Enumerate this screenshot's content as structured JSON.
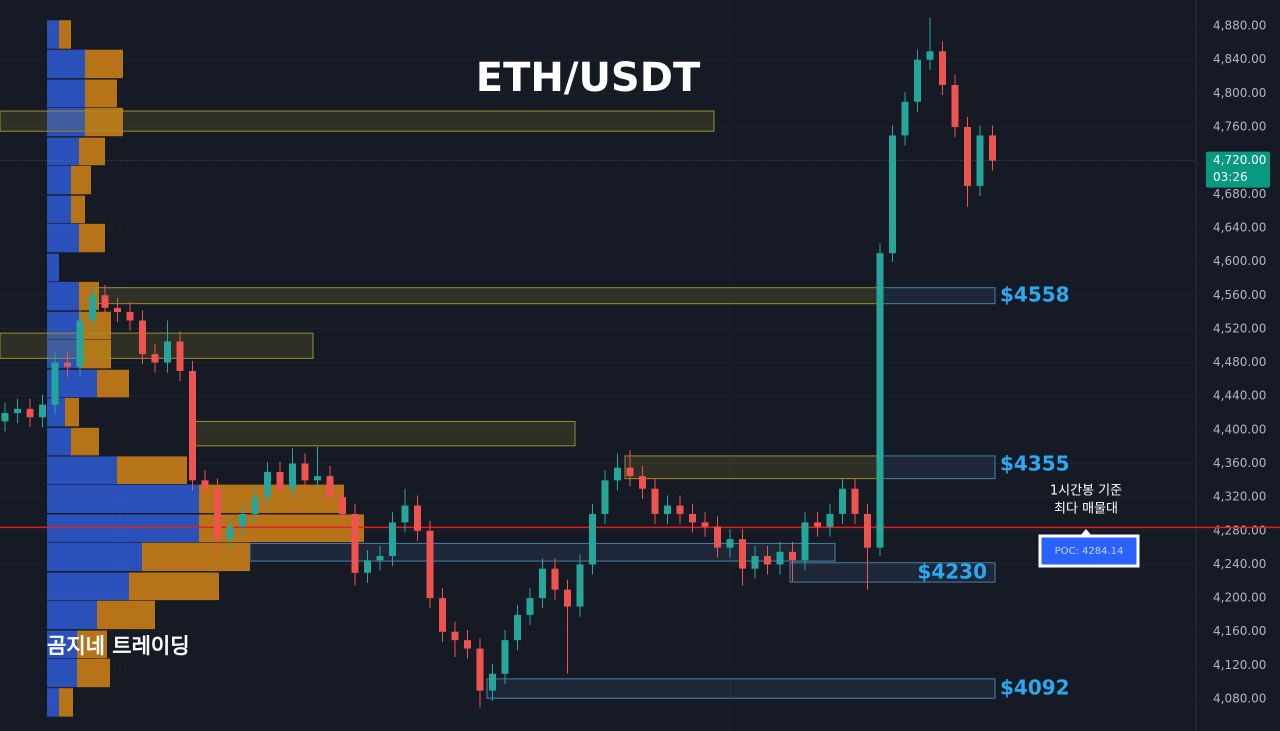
{
  "chart_data": {
    "type": "candlestick",
    "title": "ETH/USDT",
    "watermark": "곰지네 트레이딩",
    "ylim": [
      4042,
      4911
    ],
    "yticks": [
      {
        "value": 4080,
        "label": "4,080.00"
      },
      {
        "value": 4120,
        "label": "4,120.00"
      },
      {
        "value": 4160,
        "label": "4,160.00"
      },
      {
        "value": 4200,
        "label": "4,200.00"
      },
      {
        "value": 4240,
        "label": "4,240.00"
      },
      {
        "value": 4280,
        "label": "4,280.00"
      },
      {
        "value": 4320,
        "label": "4,320.00"
      },
      {
        "value": 4360,
        "label": "4,360.00"
      },
      {
        "value": 4400,
        "label": "4,400.00"
      },
      {
        "value": 4440,
        "label": "4,440.00"
      },
      {
        "value": 4480,
        "label": "4,480.00"
      },
      {
        "value": 4520,
        "label": "4,520.00"
      },
      {
        "value": 4560,
        "label": "4,560.00"
      },
      {
        "value": 4600,
        "label": "4,600.00"
      },
      {
        "value": 4640,
        "label": "4,640.00"
      },
      {
        "value": 4680,
        "label": "4,680.00"
      },
      {
        "value": 4720,
        "label": "4,720.00"
      },
      {
        "value": 4760,
        "label": "4,760.00"
      },
      {
        "value": 4800,
        "label": "4,800.00"
      },
      {
        "value": 4840,
        "label": "4,840.00"
      },
      {
        "value": 4880,
        "label": "4,880.00"
      }
    ],
    "up_color": "#26a69a",
    "down_color": "#ef5350",
    "open": [
      4410,
      4420,
      4425,
      4415,
      4430,
      4480,
      4475,
      4530,
      4560,
      4545,
      4540,
      4530,
      4490,
      4480,
      4505,
      4470,
      4340,
      4330,
      4270,
      4285,
      4300,
      4320,
      4350,
      4330,
      4360,
      4340,
      4345,
      4320,
      4300,
      4230,
      4245,
      4250,
      4290,
      4310,
      4280,
      4200,
      4160,
      4150,
      4140,
      4090,
      4110,
      4150,
      4180,
      4200,
      4235,
      4210,
      4190,
      4240,
      4300,
      4340,
      4355,
      4345,
      4330,
      4300,
      4310,
      4300,
      4290,
      4285,
      4260,
      4270,
      4235,
      4250,
      4240,
      4255,
      4245,
      4290,
      4285,
      4300,
      4330,
      4300,
      4260,
      4610,
      4750,
      4790,
      4840,
      4850,
      4810,
      4760,
      4690,
      4750
    ],
    "high": [
      4432,
      4437,
      4437,
      4442,
      4492,
      4492,
      4542,
      4572,
      4572,
      4557,
      4552,
      4542,
      4502,
      4530,
      4517,
      4482,
      4352,
      4342,
      4297,
      4312,
      4332,
      4362,
      4362,
      4378,
      4372,
      4380,
      4357,
      4332,
      4312,
      4257,
      4262,
      4302,
      4330,
      4322,
      4292,
      4212,
      4172,
      4162,
      4152,
      4122,
      4162,
      4192,
      4212,
      4247,
      4247,
      4222,
      4252,
      4312,
      4352,
      4372,
      4376,
      4357,
      4342,
      4322,
      4322,
      4312,
      4302,
      4297,
      4282,
      4282,
      4262,
      4262,
      4267,
      4267,
      4302,
      4302,
      4312,
      4342,
      4342,
      4312,
      4622,
      4762,
      4802,
      4852,
      4890,
      4862,
      4822,
      4772,
      4762,
      4762
    ],
    "low": [
      4398,
      4408,
      4403,
      4403,
      4418,
      4463,
      4463,
      4518,
      4533,
      4528,
      4518,
      4478,
      4468,
      4468,
      4458,
      4328,
      4318,
      4250,
      4258,
      4273,
      4288,
      4308,
      4318,
      4318,
      4328,
      4328,
      4308,
      4288,
      4215,
      4218,
      4233,
      4238,
      4278,
      4268,
      4188,
      4148,
      4130,
      4128,
      4070,
      4078,
      4098,
      4138,
      4168,
      4188,
      4198,
      4110,
      4178,
      4228,
      4288,
      4328,
      4333,
      4318,
      4288,
      4288,
      4288,
      4278,
      4273,
      4248,
      4248,
      4215,
      4223,
      4228,
      4228,
      4220,
      4233,
      4273,
      4273,
      4288,
      4288,
      4210,
      4250,
      4600,
      4738,
      4778,
      4828,
      4798,
      4748,
      4665,
      4678,
      4708
    ],
    "close": [
      4420,
      4425,
      4415,
      4430,
      4480,
      4475,
      4530,
      4560,
      4545,
      4540,
      4530,
      4490,
      4480,
      4505,
      4470,
      4340,
      4330,
      4270,
      4285,
      4300,
      4320,
      4350,
      4330,
      4360,
      4340,
      4345,
      4320,
      4300,
      4230,
      4245,
      4250,
      4290,
      4310,
      4280,
      4200,
      4160,
      4150,
      4140,
      4090,
      4110,
      4150,
      4180,
      4200,
      4235,
      4210,
      4190,
      4240,
      4300,
      4340,
      4355,
      4345,
      4330,
      4300,
      4310,
      4300,
      4290,
      4285,
      4260,
      4270,
      4235,
      4250,
      4240,
      4255,
      4245,
      4290,
      4285,
      4300,
      4330,
      4300,
      4260,
      4610,
      4750,
      4790,
      4840,
      4850,
      4810,
      4760,
      4690,
      4750,
      4720
    ],
    "volume_profile": {
      "buy_color": "#2f5fe0",
      "sell_color": "#e08a14",
      "price": [
        4870,
        4835,
        4800,
        4766,
        4731,
        4697,
        4662,
        4628,
        4593,
        4559,
        4524,
        4490,
        4455,
        4421,
        4386,
        4352,
        4318,
        4283,
        4249,
        4214,
        4180,
        4145,
        4111,
        4076
      ],
      "buy": [
        12,
        38,
        38,
        38,
        32,
        24,
        24,
        32,
        12,
        32,
        32,
        32,
        50,
        18,
        24,
        70,
        152,
        152,
        95,
        82,
        50,
        30,
        30,
        12
      ],
      "sell": [
        12,
        38,
        32,
        38,
        26,
        20,
        14,
        26,
        0,
        20,
        32,
        32,
        32,
        14,
        28,
        70,
        145,
        165,
        108,
        90,
        58,
        30,
        33,
        14
      ]
    },
    "zones": [
      {
        "top": 4779,
        "bottom": 4755,
        "style": "yellow"
      },
      {
        "top": 4569,
        "bottom": 4550,
        "style": "yellow"
      },
      {
        "top": 4569,
        "bottom": 4550,
        "style": "blue"
      },
      {
        "top": 4515,
        "bottom": 4485,
        "style": "yellow"
      },
      {
        "top": 4410,
        "bottom": 4381,
        "style": "yellow"
      },
      {
        "top": 4369,
        "bottom": 4342,
        "style": "yellow"
      },
      {
        "top": 4369,
        "bottom": 4342,
        "style": "blue"
      },
      {
        "top": 4265,
        "bottom": 4244,
        "style": "blue"
      },
      {
        "top": 4242,
        "bottom": 4219,
        "style": "blue"
      },
      {
        "top": 4104,
        "bottom": 4081,
        "style": "blue"
      }
    ],
    "zone_labels": [
      "$4558",
      "$4355",
      "$4230",
      "$4092"
    ],
    "poc": {
      "value": 4284.14,
      "label": "POC: 4284.14"
    },
    "poc_note": [
      "1시간봉 기준",
      "최다 매물대"
    ],
    "last_price": {
      "value": 4720,
      "label": "4,720.00"
    },
    "timer": "03:26"
  }
}
